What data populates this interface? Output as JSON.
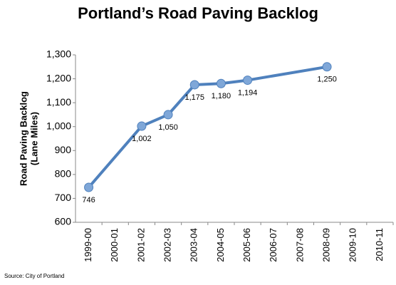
{
  "chart_data": {
    "type": "line",
    "title": "Portland’s Road Paving Backlog",
    "ylabel": [
      "Road Paving Backlog",
      "(Lane Miles)"
    ],
    "source": "Source: City of Portland",
    "categories": [
      "1999-00",
      "2000-01",
      "2001-02",
      "2002-03",
      "2003-04",
      "2004-05",
      "2005-06",
      "2006-07",
      "2007-08",
      "2008-09",
      "2009-10",
      "2010-11"
    ],
    "series": [
      {
        "name": "Road Paving Backlog",
        "color": "#4f81bd",
        "values": [
          746,
          null,
          1002,
          1050,
          1175,
          1180,
          1194,
          null,
          null,
          1250,
          null,
          null
        ],
        "value_labels": [
          "746",
          null,
          "1,002",
          "1,050",
          "1,175",
          "1,180",
          "1,194",
          null,
          null,
          "1,250",
          null,
          null
        ]
      }
    ],
    "connect_gaps": true,
    "ylim": [
      600,
      1300
    ],
    "yticks": [
      600,
      700,
      800,
      900,
      {
        "value": 1000,
        "label": "1,000"
      },
      {
        "value": 1100,
        "label": "1,100"
      },
      {
        "value": 1200,
        "label": "1,200"
      },
      {
        "value": 1300,
        "label": "1,300"
      }
    ],
    "grid": false
  }
}
